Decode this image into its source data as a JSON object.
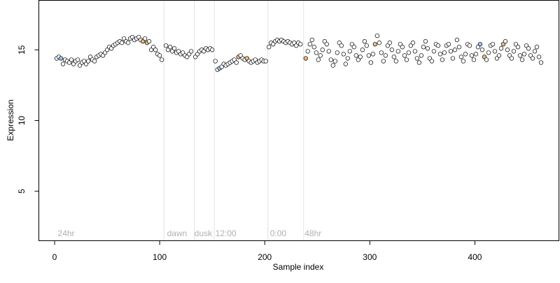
{
  "chart_data": {
    "type": "scatter",
    "title": "",
    "xlabel": "Sample index",
    "ylabel": "Expression",
    "xlim": [
      -15,
      480
    ],
    "ylim": [
      1.5,
      18.5
    ],
    "x_ticks": [
      0,
      100,
      200,
      300,
      400
    ],
    "y_ticks": [
      5,
      10,
      15
    ],
    "grid": false,
    "legend": "none",
    "colors": {
      "point_fill_default": "#ffffff",
      "point_fill_blue": "#9cc3f0",
      "point_fill_orange": "#f0b87a",
      "point_stroke": "#000000",
      "segment_line": "#e2e2e2",
      "segment_label": "#b0b0b0"
    },
    "segment_boundaries": [
      104,
      133,
      152,
      203,
      237
    ],
    "segment_labels": [
      {
        "text": "24hr",
        "x": 3
      },
      {
        "text": "dawn",
        "x": 107
      },
      {
        "text": "dusk",
        "x": 133
      },
      {
        "text": "12:00",
        "x": 153
      },
      {
        "text": "0:00",
        "x": 205
      },
      {
        "text": "48hr",
        "x": 238
      }
    ],
    "points": [
      {
        "x": 2,
        "y": 14.4,
        "c": "w"
      },
      {
        "x": 4,
        "y": 14.5,
        "c": "w"
      },
      {
        "x": 6,
        "y": 14.4,
        "c": "b"
      },
      {
        "x": 8,
        "y": 14.0,
        "c": "w"
      },
      {
        "x": 10,
        "y": 14.3,
        "c": "w"
      },
      {
        "x": 12,
        "y": 14.2,
        "c": "w"
      },
      {
        "x": 14,
        "y": 14.1,
        "c": "w"
      },
      {
        "x": 16,
        "y": 14.3,
        "c": "w"
      },
      {
        "x": 18,
        "y": 14.0,
        "c": "w"
      },
      {
        "x": 20,
        "y": 14.2,
        "c": "w"
      },
      {
        "x": 22,
        "y": 14.3,
        "c": "w"
      },
      {
        "x": 24,
        "y": 13.9,
        "c": "w"
      },
      {
        "x": 26,
        "y": 14.1,
        "c": "w"
      },
      {
        "x": 28,
        "y": 14.2,
        "c": "w"
      },
      {
        "x": 30,
        "y": 14.0,
        "c": "w"
      },
      {
        "x": 32,
        "y": 14.2,
        "c": "w"
      },
      {
        "x": 34,
        "y": 14.5,
        "c": "w"
      },
      {
        "x": 36,
        "y": 14.3,
        "c": "w"
      },
      {
        "x": 38,
        "y": 14.2,
        "c": "w"
      },
      {
        "x": 40,
        "y": 14.5,
        "c": "w"
      },
      {
        "x": 42,
        "y": 14.6,
        "c": "w"
      },
      {
        "x": 44,
        "y": 14.7,
        "c": "w"
      },
      {
        "x": 46,
        "y": 14.6,
        "c": "w"
      },
      {
        "x": 48,
        "y": 14.8,
        "c": "w"
      },
      {
        "x": 50,
        "y": 15.0,
        "c": "w"
      },
      {
        "x": 52,
        "y": 15.2,
        "c": "w"
      },
      {
        "x": 54,
        "y": 15.1,
        "c": "w"
      },
      {
        "x": 56,
        "y": 15.3,
        "c": "w"
      },
      {
        "x": 58,
        "y": 15.4,
        "c": "w"
      },
      {
        "x": 60,
        "y": 15.5,
        "c": "w"
      },
      {
        "x": 62,
        "y": 15.6,
        "c": "w"
      },
      {
        "x": 64,
        "y": 15.5,
        "c": "w"
      },
      {
        "x": 66,
        "y": 15.8,
        "c": "w"
      },
      {
        "x": 68,
        "y": 15.6,
        "c": "w"
      },
      {
        "x": 70,
        "y": 15.5,
        "c": "w"
      },
      {
        "x": 72,
        "y": 15.8,
        "c": "w"
      },
      {
        "x": 74,
        "y": 15.9,
        "c": "w"
      },
      {
        "x": 76,
        "y": 15.7,
        "c": "w"
      },
      {
        "x": 78,
        "y": 15.8,
        "c": "w"
      },
      {
        "x": 80,
        "y": 15.9,
        "c": "w"
      },
      {
        "x": 82,
        "y": 15.7,
        "c": "w"
      },
      {
        "x": 84,
        "y": 15.6,
        "c": "o"
      },
      {
        "x": 86,
        "y": 15.8,
        "c": "w"
      },
      {
        "x": 88,
        "y": 15.5,
        "c": "o"
      },
      {
        "x": 90,
        "y": 15.6,
        "c": "w"
      },
      {
        "x": 92,
        "y": 15.0,
        "c": "w"
      },
      {
        "x": 94,
        "y": 15.2,
        "c": "w"
      },
      {
        "x": 96,
        "y": 15.0,
        "c": "w"
      },
      {
        "x": 98,
        "y": 14.7,
        "c": "w"
      },
      {
        "x": 100,
        "y": 14.6,
        "c": "w"
      },
      {
        "x": 102,
        "y": 14.3,
        "c": "w"
      },
      {
        "x": 106,
        "y": 15.3,
        "c": "w"
      },
      {
        "x": 108,
        "y": 15.0,
        "c": "w"
      },
      {
        "x": 110,
        "y": 15.2,
        "c": "w"
      },
      {
        "x": 112,
        "y": 14.9,
        "c": "w"
      },
      {
        "x": 114,
        "y": 15.1,
        "c": "w"
      },
      {
        "x": 116,
        "y": 14.8,
        "c": "w"
      },
      {
        "x": 118,
        "y": 14.9,
        "c": "w"
      },
      {
        "x": 120,
        "y": 14.7,
        "c": "w"
      },
      {
        "x": 122,
        "y": 14.8,
        "c": "w"
      },
      {
        "x": 124,
        "y": 14.6,
        "c": "w"
      },
      {
        "x": 126,
        "y": 14.5,
        "c": "w"
      },
      {
        "x": 128,
        "y": 14.7,
        "c": "w"
      },
      {
        "x": 130,
        "y": 14.9,
        "c": "w"
      },
      {
        "x": 134,
        "y": 14.5,
        "c": "w"
      },
      {
        "x": 136,
        "y": 14.7,
        "c": "w"
      },
      {
        "x": 138,
        "y": 14.9,
        "c": "w"
      },
      {
        "x": 140,
        "y": 15.0,
        "c": "w"
      },
      {
        "x": 142,
        "y": 14.9,
        "c": "w"
      },
      {
        "x": 144,
        "y": 15.1,
        "c": "w"
      },
      {
        "x": 146,
        "y": 15.0,
        "c": "w"
      },
      {
        "x": 148,
        "y": 15.1,
        "c": "w"
      },
      {
        "x": 150,
        "y": 15.0,
        "c": "w"
      },
      {
        "x": 153,
        "y": 14.2,
        "c": "w"
      },
      {
        "x": 155,
        "y": 13.6,
        "c": "w"
      },
      {
        "x": 157,
        "y": 13.7,
        "c": "b"
      },
      {
        "x": 159,
        "y": 13.8,
        "c": "w"
      },
      {
        "x": 161,
        "y": 14.0,
        "c": "w"
      },
      {
        "x": 163,
        "y": 13.9,
        "c": "w"
      },
      {
        "x": 165,
        "y": 14.0,
        "c": "w"
      },
      {
        "x": 167,
        "y": 14.1,
        "c": "w"
      },
      {
        "x": 169,
        "y": 14.2,
        "c": "w"
      },
      {
        "x": 171,
        "y": 14.3,
        "c": "w"
      },
      {
        "x": 173,
        "y": 14.1,
        "c": "w"
      },
      {
        "x": 175,
        "y": 14.5,
        "c": "o"
      },
      {
        "x": 177,
        "y": 14.6,
        "c": "w"
      },
      {
        "x": 179,
        "y": 14.4,
        "c": "w"
      },
      {
        "x": 181,
        "y": 14.3,
        "c": "w"
      },
      {
        "x": 183,
        "y": 14.4,
        "c": "o"
      },
      {
        "x": 185,
        "y": 14.2,
        "c": "w"
      },
      {
        "x": 187,
        "y": 14.1,
        "c": "w"
      },
      {
        "x": 189,
        "y": 14.2,
        "c": "w"
      },
      {
        "x": 191,
        "y": 14.3,
        "c": "w"
      },
      {
        "x": 193,
        "y": 14.1,
        "c": "w"
      },
      {
        "x": 195,
        "y": 14.2,
        "c": "w"
      },
      {
        "x": 197,
        "y": 14.3,
        "c": "w"
      },
      {
        "x": 199,
        "y": 14.2,
        "c": "w"
      },
      {
        "x": 201,
        "y": 14.2,
        "c": "w"
      },
      {
        "x": 204,
        "y": 15.2,
        "c": "w"
      },
      {
        "x": 206,
        "y": 15.5,
        "c": "w"
      },
      {
        "x": 208,
        "y": 15.4,
        "c": "w"
      },
      {
        "x": 210,
        "y": 15.6,
        "c": "w"
      },
      {
        "x": 212,
        "y": 15.7,
        "c": "w"
      },
      {
        "x": 214,
        "y": 15.6,
        "c": "w"
      },
      {
        "x": 216,
        "y": 15.7,
        "c": "w"
      },
      {
        "x": 218,
        "y": 15.6,
        "c": "w"
      },
      {
        "x": 220,
        "y": 15.5,
        "c": "w"
      },
      {
        "x": 222,
        "y": 15.6,
        "c": "w"
      },
      {
        "x": 224,
        "y": 15.5,
        "c": "w"
      },
      {
        "x": 226,
        "y": 15.4,
        "c": "w"
      },
      {
        "x": 228,
        "y": 15.5,
        "c": "w"
      },
      {
        "x": 230,
        "y": 15.3,
        "c": "w"
      },
      {
        "x": 232,
        "y": 15.5,
        "c": "w"
      },
      {
        "x": 234,
        "y": 15.4,
        "c": "w"
      },
      {
        "x": 239,
        "y": 14.4,
        "c": "o"
      },
      {
        "x": 241,
        "y": 14.9,
        "c": "w"
      },
      {
        "x": 243,
        "y": 15.4,
        "c": "w"
      },
      {
        "x": 245,
        "y": 15.7,
        "c": "w"
      },
      {
        "x": 247,
        "y": 15.2,
        "c": "w"
      },
      {
        "x": 249,
        "y": 14.8,
        "c": "w"
      },
      {
        "x": 251,
        "y": 14.3,
        "c": "w"
      },
      {
        "x": 253,
        "y": 14.6,
        "c": "w"
      },
      {
        "x": 255,
        "y": 15.0,
        "c": "w"
      },
      {
        "x": 257,
        "y": 15.6,
        "c": "w"
      },
      {
        "x": 259,
        "y": 15.4,
        "c": "w"
      },
      {
        "x": 261,
        "y": 14.9,
        "c": "w"
      },
      {
        "x": 263,
        "y": 14.3,
        "c": "w"
      },
      {
        "x": 265,
        "y": 13.9,
        "c": "w"
      },
      {
        "x": 267,
        "y": 14.2,
        "c": "w"
      },
      {
        "x": 269,
        "y": 14.8,
        "c": "w"
      },
      {
        "x": 271,
        "y": 15.5,
        "c": "w"
      },
      {
        "x": 273,
        "y": 15.3,
        "c": "w"
      },
      {
        "x": 275,
        "y": 14.7,
        "c": "w"
      },
      {
        "x": 277,
        "y": 14.0,
        "c": "w"
      },
      {
        "x": 279,
        "y": 14.4,
        "c": "w"
      },
      {
        "x": 281,
        "y": 14.9,
        "c": "w"
      },
      {
        "x": 283,
        "y": 15.4,
        "c": "w"
      },
      {
        "x": 285,
        "y": 15.2,
        "c": "w"
      },
      {
        "x": 287,
        "y": 14.6,
        "c": "w"
      },
      {
        "x": 289,
        "y": 14.3,
        "c": "w"
      },
      {
        "x": 291,
        "y": 14.5,
        "c": "w"
      },
      {
        "x": 293,
        "y": 15.0,
        "c": "w"
      },
      {
        "x": 295,
        "y": 15.6,
        "c": "w"
      },
      {
        "x": 297,
        "y": 15.3,
        "c": "w"
      },
      {
        "x": 299,
        "y": 14.6,
        "c": "w"
      },
      {
        "x": 301,
        "y": 14.1,
        "c": "w"
      },
      {
        "x": 303,
        "y": 14.7,
        "c": "w"
      },
      {
        "x": 305,
        "y": 15.4,
        "c": "o"
      },
      {
        "x": 307,
        "y": 16.0,
        "c": "w"
      },
      {
        "x": 309,
        "y": 15.5,
        "c": "w"
      },
      {
        "x": 311,
        "y": 14.8,
        "c": "w"
      },
      {
        "x": 313,
        "y": 14.2,
        "c": "w"
      },
      {
        "x": 315,
        "y": 14.6,
        "c": "w"
      },
      {
        "x": 317,
        "y": 15.3,
        "c": "w"
      },
      {
        "x": 319,
        "y": 15.5,
        "c": "w"
      },
      {
        "x": 321,
        "y": 15.0,
        "c": "w"
      },
      {
        "x": 323,
        "y": 14.5,
        "c": "w"
      },
      {
        "x": 325,
        "y": 14.2,
        "c": "w"
      },
      {
        "x": 327,
        "y": 14.9,
        "c": "w"
      },
      {
        "x": 329,
        "y": 15.4,
        "c": "w"
      },
      {
        "x": 331,
        "y": 15.2,
        "c": "w"
      },
      {
        "x": 333,
        "y": 14.6,
        "c": "w"
      },
      {
        "x": 335,
        "y": 14.3,
        "c": "w"
      },
      {
        "x": 337,
        "y": 14.8,
        "c": "w"
      },
      {
        "x": 339,
        "y": 15.3,
        "c": "w"
      },
      {
        "x": 341,
        "y": 15.5,
        "c": "w"
      },
      {
        "x": 343,
        "y": 14.9,
        "c": "w"
      },
      {
        "x": 345,
        "y": 14.4,
        "c": "w"
      },
      {
        "x": 347,
        "y": 14.1,
        "c": "w"
      },
      {
        "x": 349,
        "y": 14.6,
        "c": "w"
      },
      {
        "x": 351,
        "y": 15.2,
        "c": "w"
      },
      {
        "x": 353,
        "y": 15.6,
        "c": "w"
      },
      {
        "x": 355,
        "y": 15.1,
        "c": "w"
      },
      {
        "x": 357,
        "y": 14.4,
        "c": "w"
      },
      {
        "x": 359,
        "y": 14.2,
        "c": "w"
      },
      {
        "x": 361,
        "y": 14.9,
        "c": "w"
      },
      {
        "x": 363,
        "y": 15.4,
        "c": "w"
      },
      {
        "x": 365,
        "y": 15.3,
        "c": "w"
      },
      {
        "x": 367,
        "y": 14.7,
        "c": "w"
      },
      {
        "x": 369,
        "y": 14.3,
        "c": "w"
      },
      {
        "x": 371,
        "y": 14.8,
        "c": "w"
      },
      {
        "x": 373,
        "y": 15.3,
        "c": "w"
      },
      {
        "x": 375,
        "y": 15.4,
        "c": "w"
      },
      {
        "x": 377,
        "y": 14.9,
        "c": "w"
      },
      {
        "x": 379,
        "y": 14.4,
        "c": "w"
      },
      {
        "x": 381,
        "y": 15.0,
        "c": "w"
      },
      {
        "x": 383,
        "y": 15.7,
        "c": "w"
      },
      {
        "x": 385,
        "y": 15.2,
        "c": "w"
      },
      {
        "x": 387,
        "y": 14.5,
        "c": "w"
      },
      {
        "x": 389,
        "y": 14.2,
        "c": "w"
      },
      {
        "x": 391,
        "y": 14.7,
        "c": "w"
      },
      {
        "x": 393,
        "y": 15.4,
        "c": "w"
      },
      {
        "x": 395,
        "y": 15.3,
        "c": "w"
      },
      {
        "x": 397,
        "y": 14.6,
        "c": "w"
      },
      {
        "x": 399,
        "y": 14.3,
        "c": "w"
      },
      {
        "x": 401,
        "y": 14.7,
        "c": "w"
      },
      {
        "x": 403,
        "y": 15.2,
        "c": "w"
      },
      {
        "x": 405,
        "y": 15.4,
        "c": "b"
      },
      {
        "x": 407,
        "y": 15.0,
        "c": "w"
      },
      {
        "x": 409,
        "y": 14.5,
        "c": "o"
      },
      {
        "x": 411,
        "y": 14.3,
        "c": "w"
      },
      {
        "x": 413,
        "y": 14.8,
        "c": "w"
      },
      {
        "x": 415,
        "y": 15.3,
        "c": "w"
      },
      {
        "x": 417,
        "y": 15.4,
        "c": "w"
      },
      {
        "x": 419,
        "y": 14.9,
        "c": "w"
      },
      {
        "x": 421,
        "y": 14.4,
        "c": "w"
      },
      {
        "x": 423,
        "y": 14.6,
        "c": "w"
      },
      {
        "x": 425,
        "y": 15.1,
        "c": "w"
      },
      {
        "x": 427,
        "y": 15.4,
        "c": "o"
      },
      {
        "x": 429,
        "y": 15.6,
        "c": "w"
      },
      {
        "x": 431,
        "y": 15.0,
        "c": "w"
      },
      {
        "x": 433,
        "y": 14.6,
        "c": "w"
      },
      {
        "x": 435,
        "y": 14.4,
        "c": "w"
      },
      {
        "x": 437,
        "y": 14.9,
        "c": "w"
      },
      {
        "x": 439,
        "y": 15.4,
        "c": "w"
      },
      {
        "x": 441,
        "y": 15.2,
        "c": "w"
      },
      {
        "x": 443,
        "y": 14.6,
        "c": "w"
      },
      {
        "x": 445,
        "y": 14.3,
        "c": "w"
      },
      {
        "x": 447,
        "y": 14.7,
        "c": "w"
      },
      {
        "x": 449,
        "y": 15.3,
        "c": "w"
      },
      {
        "x": 451,
        "y": 15.1,
        "c": "w"
      },
      {
        "x": 453,
        "y": 14.6,
        "c": "w"
      },
      {
        "x": 455,
        "y": 14.4,
        "c": "w"
      },
      {
        "x": 457,
        "y": 14.9,
        "c": "w"
      },
      {
        "x": 459,
        "y": 15.2,
        "c": "w"
      },
      {
        "x": 461,
        "y": 14.5,
        "c": "w"
      },
      {
        "x": 463,
        "y": 14.1,
        "c": "w"
      }
    ]
  }
}
